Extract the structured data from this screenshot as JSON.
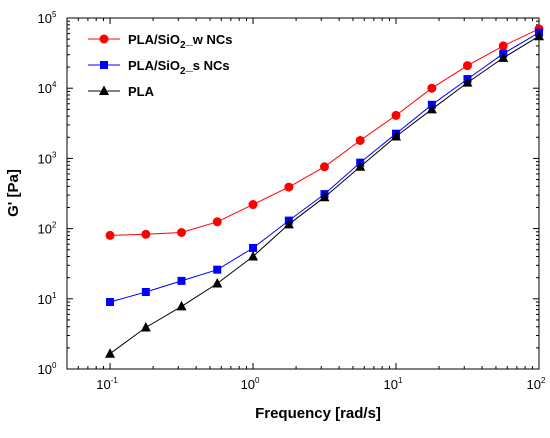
{
  "chart_data": {
    "type": "line",
    "xlabel": "Frequency [rad/s]",
    "ylabel": "G' [Pa]",
    "xscale": "log",
    "yscale": "log",
    "xlim": [
      0.05,
      100
    ],
    "ylim": [
      1,
      100000
    ],
    "legend_position": "top-left",
    "x_ticks": [
      {
        "base": "10",
        "exp": "-1"
      },
      {
        "base": "10",
        "exp": "0"
      },
      {
        "base": "10",
        "exp": "1"
      },
      {
        "base": "10",
        "exp": "2"
      }
    ],
    "y_ticks": [
      {
        "base": "10",
        "exp": "0"
      },
      {
        "base": "10",
        "exp": "1"
      },
      {
        "base": "10",
        "exp": "2"
      },
      {
        "base": "10",
        "exp": "3"
      },
      {
        "base": "10",
        "exp": "4"
      },
      {
        "base": "10",
        "exp": "5"
      }
    ],
    "x": [
      0.1,
      0.178,
      0.316,
      0.562,
      1.0,
      1.78,
      3.16,
      5.62,
      10.0,
      17.8,
      31.6,
      56.2,
      100.0
    ],
    "series": [
      {
        "name": "PLA/SiO2_w NCs",
        "name_parts": [
          "PLA/SiO",
          "2",
          "_w NCs"
        ],
        "color": "#ff0000",
        "marker": "circle",
        "values": [
          80,
          83,
          88,
          125,
          220,
          390,
          760,
          1800,
          4100,
          10000,
          21000,
          40000,
          70000
        ]
      },
      {
        "name": "PLA/SiO2_s NCs",
        "name_parts": [
          "PLA/SiO",
          "2",
          "_s NCs"
        ],
        "color": "#0000ff",
        "marker": "square",
        "values": [
          9,
          12.5,
          18,
          26,
          53,
          130,
          310,
          870,
          2250,
          5800,
          13500,
          31000,
          62000
        ]
      },
      {
        "name": "PLA",
        "name_parts": [
          "PLA",
          "",
          ""
        ],
        "color": "#000000",
        "marker": "triangle",
        "values": [
          1.65,
          3.9,
          7.8,
          16.5,
          40,
          115,
          280,
          760,
          2050,
          5000,
          12000,
          27000,
          55000
        ]
      }
    ]
  }
}
